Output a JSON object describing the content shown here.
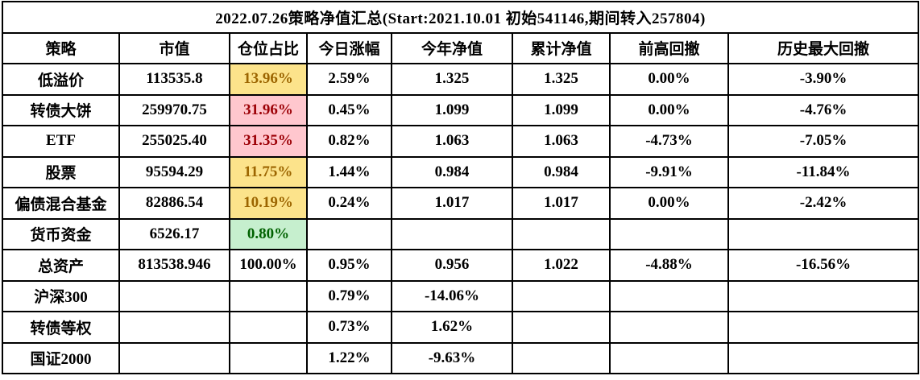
{
  "title": "2022.07.26策略净值汇总(Start:2021.10.01 初始541146,期间转入257804)",
  "colors": {
    "border": "#000000",
    "yellow_bg": "#FCE38B",
    "yellow_text": "#9C6500",
    "pink_bg": "#FFC7CE",
    "pink_text": "#9C0006",
    "green_bg": "#C6EFCE",
    "green_text": "#006100"
  },
  "chart_data": {
    "type": "table",
    "title": "2022.07.26策略净值汇总(Start:2021.10.01 初始541146,期间转入257804)",
    "columns": [
      "策略",
      "市值",
      "仓位占比",
      "今日涨幅",
      "今年净值",
      "累计净值",
      "前高回撤",
      "历史最大回撤"
    ],
    "rows": [
      {
        "cells": [
          "低溢价",
          "113535.8",
          "13.96%",
          "2.59%",
          "1.325",
          "1.325",
          "0.00%",
          "-3.90%"
        ],
        "pct_style": "yellow"
      },
      {
        "cells": [
          "转债大饼",
          "259970.75",
          "31.96%",
          "0.45%",
          "1.099",
          "1.099",
          "0.00%",
          "-4.76%"
        ],
        "pct_style": "pink"
      },
      {
        "cells": [
          "ETF",
          "255025.40",
          "31.35%",
          "0.82%",
          "1.063",
          "1.063",
          "-4.73%",
          "-7.05%"
        ],
        "pct_style": "pink"
      },
      {
        "cells": [
          "股票",
          "95594.29",
          "11.75%",
          "1.44%",
          "0.984",
          "0.984",
          "-9.91%",
          "-11.84%"
        ],
        "pct_style": "yellow"
      },
      {
        "cells": [
          "偏债混合基金",
          "82886.54",
          "10.19%",
          "0.24%",
          "1.017",
          "1.017",
          "0.00%",
          "-2.42%"
        ],
        "pct_style": "yellow"
      },
      {
        "cells": [
          "货币资金",
          "6526.17",
          "0.80%",
          "",
          "",
          "",
          "",
          ""
        ],
        "pct_style": "green"
      },
      {
        "cells": [
          "总资产",
          "813538.946",
          "100.00%",
          "0.95%",
          "0.956",
          "1.022",
          "-4.88%",
          "-16.56%"
        ],
        "pct_style": "none"
      },
      {
        "cells": [
          "沪深300",
          "",
          "",
          "0.79%",
          "-14.06%",
          "",
          "",
          ""
        ],
        "pct_style": "none"
      },
      {
        "cells": [
          "转债等权",
          "",
          "",
          "0.73%",
          "1.62%",
          "",
          "",
          ""
        ],
        "pct_style": "none"
      },
      {
        "cells": [
          "国证2000",
          "",
          "",
          "1.22%",
          "-9.63%",
          "",
          "",
          ""
        ],
        "pct_style": "none"
      }
    ]
  }
}
